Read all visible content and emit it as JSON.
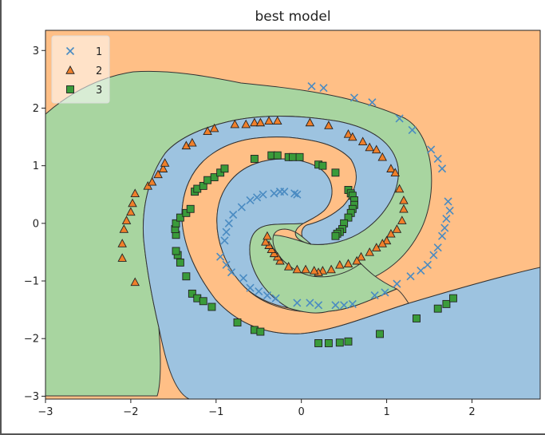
{
  "chart_data": {
    "type": "scatter",
    "title": "best model",
    "xlabel": "",
    "ylabel": "",
    "xlim": [
      -3,
      2.8
    ],
    "ylim": [
      -3.05,
      3.35
    ],
    "x_ticks": [
      -3,
      -2,
      -1,
      0,
      1,
      2
    ],
    "x_tick_labels": [
      "−3",
      "−2",
      "−1",
      "0",
      "1",
      "2"
    ],
    "y_ticks": [
      -3,
      -2,
      -1,
      0,
      1,
      2,
      3
    ],
    "y_tick_labels": [
      "−3",
      "−2",
      "−1",
      "0",
      "1",
      "2",
      "3"
    ],
    "legend_position": "top-left",
    "grid": false,
    "background_region_colors": {
      "1": "#ffbf86",
      "2": "#a8d5a0",
      "3": "#9dc3e0"
    },
    "series": [
      {
        "name": "1",
        "marker": "x",
        "color": "#4a8bc2",
        "points": [
          [
            0.12,
            2.38
          ],
          [
            0.26,
            2.35
          ],
          [
            0.62,
            2.18
          ],
          [
            0.83,
            2.1
          ],
          [
            1.15,
            1.82
          ],
          [
            1.3,
            1.62
          ],
          [
            1.52,
            1.28
          ],
          [
            1.6,
            1.12
          ],
          [
            1.65,
            0.95
          ],
          [
            1.72,
            0.38
          ],
          [
            1.74,
            0.22
          ],
          [
            1.7,
            0.08
          ],
          [
            1.68,
            -0.08
          ],
          [
            1.65,
            -0.22
          ],
          [
            1.6,
            -0.42
          ],
          [
            1.55,
            -0.55
          ],
          [
            1.48,
            -0.72
          ],
          [
            1.4,
            -0.82
          ],
          [
            1.28,
            -0.92
          ],
          [
            1.12,
            -1.05
          ],
          [
            0.98,
            -1.2
          ],
          [
            0.86,
            -1.25
          ],
          [
            0.6,
            -1.4
          ],
          [
            0.5,
            -1.42
          ],
          [
            0.4,
            -1.42
          ],
          [
            0.2,
            -1.42
          ],
          [
            0.1,
            -1.38
          ],
          [
            -0.05,
            -1.38
          ],
          [
            -0.3,
            -1.3
          ],
          [
            -0.4,
            -1.25
          ],
          [
            -0.5,
            -1.18
          ],
          [
            -0.6,
            -1.12
          ],
          [
            -0.68,
            -0.95
          ],
          [
            -0.82,
            -0.85
          ],
          [
            -0.88,
            -0.72
          ],
          [
            -0.95,
            -0.58
          ],
          [
            -0.9,
            -0.3
          ],
          [
            -0.88,
            -0.15
          ],
          [
            -0.85,
            0.0
          ],
          [
            -0.8,
            0.15
          ],
          [
            -0.7,
            0.28
          ],
          [
            -0.6,
            0.4
          ],
          [
            -0.52,
            0.45
          ],
          [
            -0.45,
            0.5
          ],
          [
            -0.32,
            0.52
          ],
          [
            -0.25,
            0.55
          ],
          [
            -0.2,
            0.55
          ],
          [
            -0.08,
            0.52
          ],
          [
            -0.05,
            0.5
          ]
        ]
      },
      {
        "name": "2",
        "marker": "triangle",
        "color": "#f07f2a",
        "points": [
          [
            -1.95,
            -1.02
          ],
          [
            -2.1,
            -0.6
          ],
          [
            -2.1,
            -0.35
          ],
          [
            -2.08,
            -0.1
          ],
          [
            -2.05,
            0.05
          ],
          [
            -2.0,
            0.2
          ],
          [
            -1.98,
            0.35
          ],
          [
            -1.95,
            0.52
          ],
          [
            -1.8,
            0.65
          ],
          [
            -1.75,
            0.72
          ],
          [
            -1.68,
            0.85
          ],
          [
            -1.62,
            0.95
          ],
          [
            -1.6,
            1.05
          ],
          [
            -1.35,
            1.35
          ],
          [
            -1.28,
            1.4
          ],
          [
            -1.1,
            1.6
          ],
          [
            -1.02,
            1.65
          ],
          [
            -0.78,
            1.72
          ],
          [
            -0.65,
            1.72
          ],
          [
            -0.55,
            1.75
          ],
          [
            -0.48,
            1.75
          ],
          [
            -0.38,
            1.78
          ],
          [
            -0.28,
            1.78
          ],
          [
            0.1,
            1.75
          ],
          [
            0.32,
            1.7
          ],
          [
            0.55,
            1.55
          ],
          [
            0.6,
            1.5
          ],
          [
            0.72,
            1.42
          ],
          [
            0.8,
            1.32
          ],
          [
            0.88,
            1.28
          ],
          [
            0.95,
            1.15
          ],
          [
            1.05,
            0.95
          ],
          [
            1.1,
            0.88
          ],
          [
            1.15,
            0.6
          ],
          [
            1.2,
            0.4
          ],
          [
            1.2,
            0.25
          ],
          [
            1.18,
            0.05
          ],
          [
            1.12,
            -0.1
          ],
          [
            1.05,
            -0.18
          ],
          [
            1.0,
            -0.3
          ],
          [
            0.95,
            -0.35
          ],
          [
            0.88,
            -0.42
          ],
          [
            0.8,
            -0.5
          ],
          [
            0.7,
            -0.58
          ],
          [
            0.65,
            -0.65
          ],
          [
            0.55,
            -0.7
          ],
          [
            0.45,
            -0.72
          ],
          [
            0.35,
            -0.8
          ],
          [
            0.25,
            -0.82
          ],
          [
            0.2,
            -0.85
          ],
          [
            0.15,
            -0.82
          ],
          [
            0.05,
            -0.8
          ],
          [
            -0.05,
            -0.8
          ],
          [
            -0.15,
            -0.75
          ],
          [
            -0.25,
            -0.65
          ],
          [
            -0.28,
            -0.58
          ],
          [
            -0.32,
            -0.52
          ],
          [
            -0.35,
            -0.45
          ],
          [
            -0.38,
            -0.38
          ],
          [
            -0.42,
            -0.32
          ],
          [
            -0.4,
            -0.22
          ]
        ]
      },
      {
        "name": "3",
        "marker": "square",
        "color": "#3a9b3a",
        "points": [
          [
            -1.28,
            -1.22
          ],
          [
            -1.22,
            -1.3
          ],
          [
            -1.15,
            -1.35
          ],
          [
            -1.05,
            -1.45
          ],
          [
            -0.75,
            -1.72
          ],
          [
            -0.55,
            -1.85
          ],
          [
            -0.48,
            -1.88
          ],
          [
            0.2,
            -2.08
          ],
          [
            0.32,
            -2.08
          ],
          [
            0.45,
            -2.07
          ],
          [
            0.55,
            -2.05
          ],
          [
            0.92,
            -1.92
          ],
          [
            1.35,
            -1.65
          ],
          [
            1.6,
            -1.48
          ],
          [
            1.7,
            -1.4
          ],
          [
            1.78,
            -1.3
          ],
          [
            -1.35,
            -0.92
          ],
          [
            -1.42,
            -0.68
          ],
          [
            -1.45,
            -0.55
          ],
          [
            -1.47,
            -0.48
          ],
          [
            -1.47,
            -0.2
          ],
          [
            -1.48,
            -0.1
          ],
          [
            -1.47,
            0.0
          ],
          [
            -1.42,
            0.1
          ],
          [
            -1.35,
            0.18
          ],
          [
            -1.3,
            0.25
          ],
          [
            -1.25,
            0.55
          ],
          [
            -1.22,
            0.6
          ],
          [
            -1.15,
            0.65
          ],
          [
            -1.1,
            0.75
          ],
          [
            -1.02,
            0.8
          ],
          [
            -0.95,
            0.88
          ],
          [
            -0.9,
            0.95
          ],
          [
            -0.55,
            1.12
          ],
          [
            -0.35,
            1.18
          ],
          [
            -0.28,
            1.18
          ],
          [
            -0.15,
            1.15
          ],
          [
            -0.1,
            1.15
          ],
          [
            -0.02,
            1.15
          ],
          [
            0.2,
            1.02
          ],
          [
            0.25,
            1.0
          ],
          [
            0.4,
            0.88
          ],
          [
            0.55,
            0.58
          ],
          [
            0.58,
            0.52
          ],
          [
            0.6,
            0.48
          ],
          [
            0.62,
            0.4
          ],
          [
            0.62,
            0.32
          ],
          [
            0.6,
            0.25
          ],
          [
            0.58,
            0.18
          ],
          [
            0.55,
            0.1
          ],
          [
            0.5,
            0.0
          ],
          [
            0.48,
            -0.1
          ],
          [
            0.45,
            -0.15
          ],
          [
            0.42,
            -0.18
          ],
          [
            0.4,
            -0.22
          ]
        ]
      }
    ]
  }
}
